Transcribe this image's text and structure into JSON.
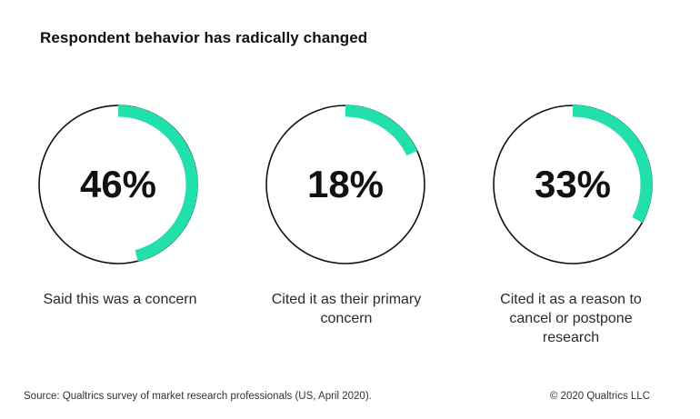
{
  "title": "Respondent behavior has radically changed",
  "accent_color": "#22e0ac",
  "ring_color": "#111111",
  "chart_data": {
    "type": "donut",
    "title": "Respondent behavior has radically changed",
    "items": [
      {
        "value": 46,
        "label": "46%",
        "caption": "Said this was a concern"
      },
      {
        "value": 18,
        "label": "18%",
        "caption": "Cited it as their primary concern"
      },
      {
        "value": 33,
        "label": "33%",
        "caption": "Cited it as a reason to cancel or postpone research"
      }
    ]
  },
  "footer": {
    "source": "Source: Qualtrics survey of market research professionals (US, April 2020).",
    "copyright": "© 2020 Qualtrics LLC"
  }
}
